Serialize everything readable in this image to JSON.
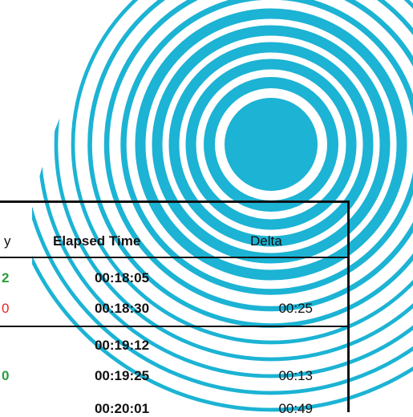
{
  "colors": {
    "rings": "#1cb3d4",
    "green": "#2a9d3a",
    "red": "#e8231f",
    "rule": "#111111"
  },
  "table": {
    "headers": {
      "first_partial": "y",
      "elapsed": "Elapsed Time",
      "delta": "Delta"
    },
    "rows": [
      {
        "left_partial": "2",
        "left_color": "green",
        "elapsed": "00:18:05",
        "delta": ""
      },
      {
        "left_partial": "0",
        "left_color": "red",
        "elapsed": "00:18:30",
        "delta": "00:25"
      },
      {
        "left_partial": "",
        "left_color": "",
        "elapsed": "00:19:12",
        "delta": ""
      },
      {
        "left_partial": "0",
        "left_color": "green",
        "elapsed": "00:19:25",
        "delta": "00:13"
      },
      {
        "left_partial": "",
        "left_color": "",
        "elapsed": "00:20:01",
        "delta": "00:49"
      }
    ]
  }
}
